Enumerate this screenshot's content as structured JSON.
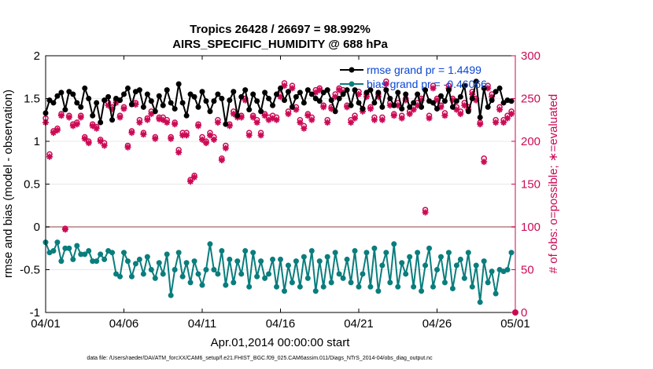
{
  "chart_data": {
    "type": "line",
    "title": "Tropics 26428 / 26697 = 98.992%",
    "subtitle": "AIRS_SPECIFIC_HUMIDITY @ 688 hPa",
    "xlabel": "Apr.01,2014 00:00:00 start",
    "ylabel": "rmse and bias (model - observation)",
    "ylabel_right": "# of obs: o=possible; ∗=evaluated",
    "footnote": "data file: /Users/raeder/DAI/ATM_forcXX/CAM6_setup/f.e21.FHIST_BGC.f09_025.CAM6assim.011/Diags_NTrS_2014-04/obs_diag_output.nc",
    "xlim": [
      0,
      30
    ],
    "ylim": [
      -1,
      2
    ],
    "ylim_right": [
      0,
      300
    ],
    "x_ticks": [
      0,
      5,
      10,
      15,
      20,
      25,
      30
    ],
    "x_tick_labels": [
      "04/01",
      "04/06",
      "04/11",
      "04/16",
      "04/21",
      "04/26",
      "05/01"
    ],
    "y_ticks": [
      -1,
      -0.5,
      0,
      0.5,
      1,
      1.5,
      2
    ],
    "y_tick_labels": [
      "-1",
      "-0.5",
      "0",
      "0.5",
      "1",
      "1.5",
      "2"
    ],
    "y_ticks_right": [
      0,
      50,
      100,
      150,
      200,
      250,
      300
    ],
    "y_tick_labels_right": [
      "0",
      "50",
      "100",
      "150",
      "200",
      "250",
      "300"
    ],
    "zero_line": 0,
    "legend_position": "top-right",
    "series": [
      {
        "name": "rmse",
        "legend": "rmse grand pr = 1.4499",
        "color": "#000000",
        "marker": "circle",
        "axis": "left",
        "x": [
          0.0,
          0.25,
          0.5,
          0.75,
          1.0,
          1.25,
          1.5,
          1.75,
          2.0,
          2.25,
          2.5,
          2.75,
          3.0,
          3.25,
          3.5,
          3.75,
          4.0,
          4.25,
          4.5,
          4.75,
          5.0,
          5.25,
          5.5,
          5.75,
          6.0,
          6.25,
          6.5,
          6.75,
          7.0,
          7.25,
          7.5,
          7.75,
          8.0,
          8.25,
          8.5,
          8.75,
          9.0,
          9.25,
          9.5,
          9.75,
          10.0,
          10.25,
          10.5,
          10.75,
          11.0,
          11.25,
          11.5,
          11.75,
          12.0,
          12.25,
          12.5,
          12.75,
          13.0,
          13.25,
          13.5,
          13.75,
          14.0,
          14.25,
          14.5,
          14.75,
          15.0,
          15.25,
          15.5,
          15.75,
          16.0,
          16.25,
          16.5,
          16.75,
          17.0,
          17.25,
          17.5,
          17.75,
          18.0,
          18.25,
          18.5,
          18.75,
          19.0,
          19.25,
          19.5,
          19.75,
          20.0,
          20.25,
          20.5,
          20.75,
          21.0,
          21.25,
          21.5,
          21.75,
          22.0,
          22.25,
          22.5,
          22.75,
          23.0,
          23.25,
          23.5,
          23.75,
          24.0,
          24.25,
          24.5,
          24.75,
          25.0,
          25.25,
          25.5,
          25.75,
          26.0,
          26.25,
          26.5,
          26.75,
          27.0,
          27.25,
          27.5,
          27.75,
          28.0,
          28.25,
          28.5,
          28.75,
          29.0,
          29.25,
          29.5,
          29.75
        ],
        "values": [
          1.33,
          1.48,
          1.45,
          1.53,
          1.57,
          1.37,
          1.58,
          1.55,
          1.45,
          1.4,
          1.62,
          1.5,
          1.3,
          1.45,
          1.22,
          1.48,
          1.52,
          1.25,
          1.5,
          1.48,
          1.55,
          1.62,
          1.43,
          1.58,
          1.6,
          1.4,
          1.55,
          1.47,
          1.35,
          1.53,
          1.42,
          1.6,
          1.45,
          1.38,
          1.67,
          1.45,
          1.3,
          1.55,
          1.52,
          1.4,
          1.58,
          1.47,
          1.35,
          1.47,
          1.55,
          1.5,
          1.2,
          1.48,
          1.58,
          1.3,
          1.52,
          1.6,
          1.37,
          1.55,
          1.47,
          1.35,
          1.57,
          1.5,
          1.42,
          1.55,
          1.62,
          1.48,
          1.58,
          1.4,
          1.52,
          1.57,
          1.45,
          1.6,
          1.55,
          1.5,
          1.47,
          1.57,
          1.6,
          1.48,
          1.35,
          1.5,
          1.55,
          1.6,
          1.42,
          1.6,
          1.45,
          1.38,
          1.57,
          1.6,
          1.45,
          1.57,
          1.4,
          1.6,
          1.5,
          1.42,
          1.57,
          1.38,
          1.55,
          1.4,
          1.45,
          1.55,
          1.4,
          1.6,
          1.47,
          1.45,
          1.38,
          1.53,
          1.47,
          1.6,
          1.4,
          1.47,
          1.52,
          1.65,
          1.35,
          1.5,
          1.7,
          1.28,
          1.62,
          1.4,
          1.48,
          1.58,
          1.62,
          1.45,
          1.48,
          1.47
        ]
      },
      {
        "name": "bias",
        "legend": "bias grand pr = -0.46066",
        "color": "#0a7d7d",
        "marker": "circle",
        "axis": "left",
        "x": [
          0.0,
          0.25,
          0.5,
          0.75,
          1.0,
          1.25,
          1.5,
          1.75,
          2.0,
          2.25,
          2.5,
          2.75,
          3.0,
          3.25,
          3.5,
          3.75,
          4.0,
          4.25,
          4.5,
          4.75,
          5.0,
          5.25,
          5.5,
          5.75,
          6.0,
          6.25,
          6.5,
          6.75,
          7.0,
          7.25,
          7.5,
          7.75,
          8.0,
          8.25,
          8.5,
          8.75,
          9.0,
          9.25,
          9.5,
          9.75,
          10.0,
          10.25,
          10.5,
          10.75,
          11.0,
          11.25,
          11.5,
          11.75,
          12.0,
          12.25,
          12.5,
          12.75,
          13.0,
          13.25,
          13.5,
          13.75,
          14.0,
          14.25,
          14.5,
          14.75,
          15.0,
          15.25,
          15.5,
          15.75,
          16.0,
          16.25,
          16.5,
          16.75,
          17.0,
          17.25,
          17.5,
          17.75,
          18.0,
          18.25,
          18.5,
          18.75,
          19.0,
          19.25,
          19.5,
          19.75,
          20.0,
          20.25,
          20.5,
          20.75,
          21.0,
          21.25,
          21.5,
          21.75,
          22.0,
          22.25,
          22.5,
          22.75,
          23.0,
          23.25,
          23.5,
          23.75,
          24.0,
          24.25,
          24.5,
          24.75,
          25.0,
          25.25,
          25.5,
          25.75,
          26.0,
          26.25,
          26.5,
          26.75,
          27.0,
          27.25,
          27.5,
          27.75,
          28.0,
          28.25,
          28.5,
          28.75,
          29.0,
          29.25,
          29.5,
          29.75
        ],
        "values": [
          -0.18,
          -0.3,
          -0.28,
          -0.18,
          -0.4,
          -0.25,
          -0.25,
          -0.38,
          -0.22,
          -0.32,
          -0.32,
          -0.28,
          -0.4,
          -0.4,
          -0.32,
          -0.38,
          -0.28,
          -0.3,
          -0.55,
          -0.58,
          -0.3,
          -0.4,
          -0.58,
          -0.43,
          -0.38,
          -0.55,
          -0.35,
          -0.5,
          -0.6,
          -0.42,
          -0.55,
          -0.32,
          -0.8,
          -0.5,
          -0.3,
          -0.58,
          -0.42,
          -0.65,
          -0.4,
          -0.55,
          -0.68,
          -0.5,
          -0.2,
          -0.5,
          -0.55,
          -0.28,
          -0.68,
          -0.38,
          -0.65,
          -0.4,
          -0.55,
          -0.28,
          -0.7,
          -0.3,
          -0.58,
          -0.4,
          -0.6,
          -0.55,
          -0.38,
          -0.7,
          -0.38,
          -0.75,
          -0.45,
          -0.65,
          -0.4,
          -0.7,
          -0.35,
          -0.6,
          -0.28,
          -0.75,
          -0.4,
          -0.7,
          -0.35,
          -0.65,
          -0.3,
          -0.55,
          -0.6,
          -0.38,
          -0.65,
          -0.28,
          -0.7,
          -0.55,
          -0.3,
          -0.7,
          -0.25,
          -0.75,
          -0.45,
          -0.3,
          -0.65,
          -0.2,
          -0.7,
          -0.42,
          -0.55,
          -0.35,
          -0.7,
          -0.3,
          -0.75,
          -0.45,
          -0.25,
          -0.7,
          -0.5,
          -0.35,
          -0.65,
          -0.3,
          -0.72,
          -0.45,
          -0.38,
          -0.6,
          -0.3,
          -0.7,
          -0.45,
          -0.88,
          -0.4,
          -0.65,
          -0.52,
          -0.78,
          -0.5,
          -0.52,
          -0.5,
          -0.3
        ]
      },
      {
        "name": "obs possible",
        "marker": "o",
        "color": "#cc0a55",
        "axis": "right",
        "x": [
          0.0,
          0.25,
          0.5,
          0.75,
          1.0,
          1.25,
          1.5,
          1.75,
          2.0,
          2.25,
          2.5,
          2.75,
          3.0,
          3.25,
          3.5,
          3.75,
          4.0,
          4.25,
          4.5,
          4.75,
          5.0,
          5.25,
          5.5,
          5.75,
          6.0,
          6.25,
          6.5,
          6.75,
          7.0,
          7.25,
          7.5,
          7.75,
          8.0,
          8.25,
          8.5,
          8.75,
          9.0,
          9.25,
          9.5,
          9.75,
          10.0,
          10.25,
          10.5,
          10.75,
          11.0,
          11.25,
          11.5,
          11.75,
          12.0,
          12.25,
          12.5,
          12.75,
          13.0,
          13.25,
          13.5,
          13.75,
          14.0,
          14.25,
          14.5,
          14.75,
          15.0,
          15.25,
          15.5,
          15.75,
          16.0,
          16.25,
          16.5,
          16.75,
          17.0,
          17.25,
          17.5,
          17.75,
          18.0,
          18.25,
          18.5,
          18.75,
          19.0,
          19.25,
          19.5,
          19.75,
          20.0,
          20.25,
          20.5,
          20.75,
          21.0,
          21.25,
          21.5,
          21.75,
          22.0,
          22.25,
          22.5,
          22.75,
          23.0,
          23.25,
          23.5,
          23.75,
          24.0,
          24.25,
          24.5,
          24.75,
          25.0,
          25.25,
          25.5,
          25.75,
          26.0,
          26.25,
          26.5,
          26.75,
          27.0,
          27.25,
          27.5,
          27.75,
          28.0,
          28.25,
          28.5,
          28.75,
          29.0,
          29.25,
          29.5,
          29.75
        ],
        "values": [
          227,
          185,
          212,
          215,
          232,
          98,
          230,
          220,
          222,
          230,
          205,
          200,
          220,
          217,
          202,
          198,
          245,
          240,
          248,
          230,
          240,
          195,
          212,
          245,
          225,
          210,
          227,
          235,
          205,
          228,
          228,
          225,
          205,
          222,
          190,
          210,
          210,
          155,
          160,
          220,
          205,
          200,
          210,
          205,
          225,
          180,
          195,
          220,
          235,
          230,
          230,
          250,
          210,
          230,
          225,
          210,
          232,
          228,
          230,
          228,
          255,
          268,
          235,
          265,
          240,
          225,
          218,
          232,
          228,
          260,
          262,
          242,
          225,
          240,
          255,
          262,
          260,
          242,
          225,
          230,
          258,
          238,
          255,
          240,
          228,
          255,
          228,
          270,
          245,
          232,
          245,
          230,
          250,
          235,
          240,
          245,
          250,
          120,
          230,
          265,
          250,
          242,
          233,
          265,
          250,
          240,
          235,
          245,
          240,
          258,
          250,
          222,
          180,
          265,
          255,
          225,
          240,
          225,
          230,
          235
        ]
      },
      {
        "name": "obs evaluated",
        "marker": "*",
        "color": "#cc0a55",
        "axis": "right",
        "x": [
          0.0,
          0.25,
          0.5,
          0.75,
          1.0,
          1.25,
          1.5,
          1.75,
          2.0,
          2.25,
          2.5,
          2.75,
          3.0,
          3.25,
          3.5,
          3.75,
          4.0,
          4.25,
          4.5,
          4.75,
          5.0,
          5.25,
          5.5,
          5.75,
          6.0,
          6.25,
          6.5,
          6.75,
          7.0,
          7.25,
          7.5,
          7.75,
          8.0,
          8.25,
          8.5,
          8.75,
          9.0,
          9.25,
          9.5,
          9.75,
          10.0,
          10.25,
          10.5,
          10.75,
          11.0,
          11.25,
          11.5,
          11.75,
          12.0,
          12.25,
          12.5,
          12.75,
          13.0,
          13.25,
          13.5,
          13.75,
          14.0,
          14.25,
          14.5,
          14.75,
          15.0,
          15.25,
          15.5,
          15.75,
          16.0,
          16.25,
          16.5,
          16.75,
          17.0,
          17.25,
          17.5,
          17.75,
          18.0,
          18.25,
          18.5,
          18.75,
          19.0,
          19.25,
          19.5,
          19.75,
          20.0,
          20.25,
          20.5,
          20.75,
          21.0,
          21.25,
          21.5,
          21.75,
          22.0,
          22.25,
          22.5,
          22.75,
          23.0,
          23.25,
          23.5,
          23.75,
          24.0,
          24.25,
          24.5,
          24.75,
          25.0,
          25.25,
          25.5,
          25.75,
          26.0,
          26.25,
          26.5,
          26.75,
          27.0,
          27.25,
          27.5,
          27.75,
          28.0,
          28.25,
          28.5,
          28.75,
          29.0,
          29.25,
          29.5,
          29.75
        ],
        "values": [
          222,
          182,
          210,
          213,
          230,
          97,
          228,
          218,
          220,
          228,
          203,
          198,
          218,
          215,
          200,
          195,
          242,
          238,
          245,
          228,
          238,
          193,
          210,
          243,
          222,
          208,
          225,
          232,
          203,
          226,
          225,
          222,
          203,
          220,
          187,
          207,
          207,
          153,
          158,
          218,
          202,
          198,
          207,
          202,
          222,
          178,
          192,
          218,
          232,
          228,
          228,
          248,
          207,
          228,
          222,
          207,
          230,
          225,
          227,
          225,
          252,
          265,
          232,
          262,
          237,
          222,
          215,
          230,
          225,
          257,
          260,
          240,
          222,
          238,
          252,
          260,
          257,
          240,
          222,
          227,
          255,
          235,
          252,
          238,
          225,
          252,
          225,
          267,
          242,
          230,
          242,
          227,
          248,
          232,
          237,
          242,
          248,
          117,
          227,
          262,
          248,
          240,
          230,
          262,
          248,
          237,
          232,
          242,
          237,
          255,
          248,
          220,
          176,
          262,
          252,
          222,
          237,
          222,
          227,
          232
        ]
      }
    ]
  }
}
